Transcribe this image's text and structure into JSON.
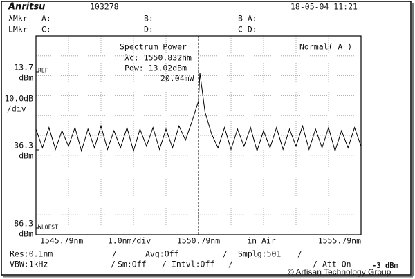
{
  "screen": {
    "logo": "Anritsu",
    "serial": "103278",
    "datetime": "18-05-04 11:21",
    "marker_rows": [
      [
        "λMkr",
        "A:",
        "B:",
        "B-A:"
      ],
      [
        "LMkr",
        "C:",
        "D:",
        "C-D:"
      ]
    ],
    "status": [
      "Res:0.1nm",
      "Avg:Off",
      "Smplg:501",
      "VBW:1kHz",
      "Sm:Off",
      "Intvl:Off",
      "Att On",
      "-3 dBm"
    ],
    "watermark": "© Artisan Technology Group"
  },
  "chart_data": {
    "type": "line",
    "title": "Spectrum Power",
    "annotations": [
      "λc: 1550.832nm",
      "Pow: 13.02dBm",
      "20.04mW",
      "Normal( A )",
      "REF",
      "WLOFST"
    ],
    "y_scale_label": [
      "10.0dB",
      "/div"
    ],
    "x_scale_label": "1.0nm/div",
    "medium": "in Air",
    "y_unit_labels": [
      "dBm",
      "dBm",
      "dBm"
    ],
    "xlim": [
      1545.79,
      1555.79
    ],
    "xticks": [
      {
        "value": 1545.79,
        "label": "1545.79nm"
      },
      {
        "value": 1550.79,
        "label": "1550.79nm"
      },
      {
        "value": 1555.79,
        "label": "1555.79nm"
      }
    ],
    "ylim": [
      -86.3,
      13.7
    ],
    "yticks": [
      13.7,
      -36.3,
      -86.3
    ],
    "grid": true,
    "color": "#000000",
    "x": [
      1545.79,
      1545.99,
      1546.19,
      1546.39,
      1546.59,
      1546.79,
      1546.99,
      1547.19,
      1547.39,
      1547.59,
      1547.79,
      1547.99,
      1548.19,
      1548.39,
      1548.59,
      1548.79,
      1548.99,
      1549.19,
      1549.39,
      1549.59,
      1549.79,
      1549.99,
      1550.19,
      1550.39,
      1550.59,
      1550.79,
      1550.832,
      1550.99,
      1551.19,
      1551.39,
      1551.59,
      1551.79,
      1551.99,
      1552.19,
      1552.39,
      1552.59,
      1552.79,
      1552.99,
      1553.19,
      1553.39,
      1553.59,
      1553.79,
      1553.99,
      1554.19,
      1554.39,
      1554.59,
      1554.79,
      1554.99,
      1555.19,
      1555.39,
      1555.59,
      1555.79
    ],
    "values": [
      -23,
      -35,
      -22,
      -36,
      -24,
      -34,
      -22,
      -37,
      -23,
      -35,
      -21,
      -36,
      -24,
      -35,
      -22,
      -37,
      -23,
      -34,
      -22,
      -36,
      -23,
      -35,
      -21,
      -30,
      -18,
      -5,
      13.02,
      -12,
      -26,
      -35,
      -22,
      -36,
      -23,
      -34,
      -22,
      -37,
      -24,
      -35,
      -22,
      -36,
      -23,
      -34,
      -21,
      -36,
      -23,
      -35,
      -22,
      -37,
      -24,
      -35,
      -22,
      -34
    ]
  }
}
